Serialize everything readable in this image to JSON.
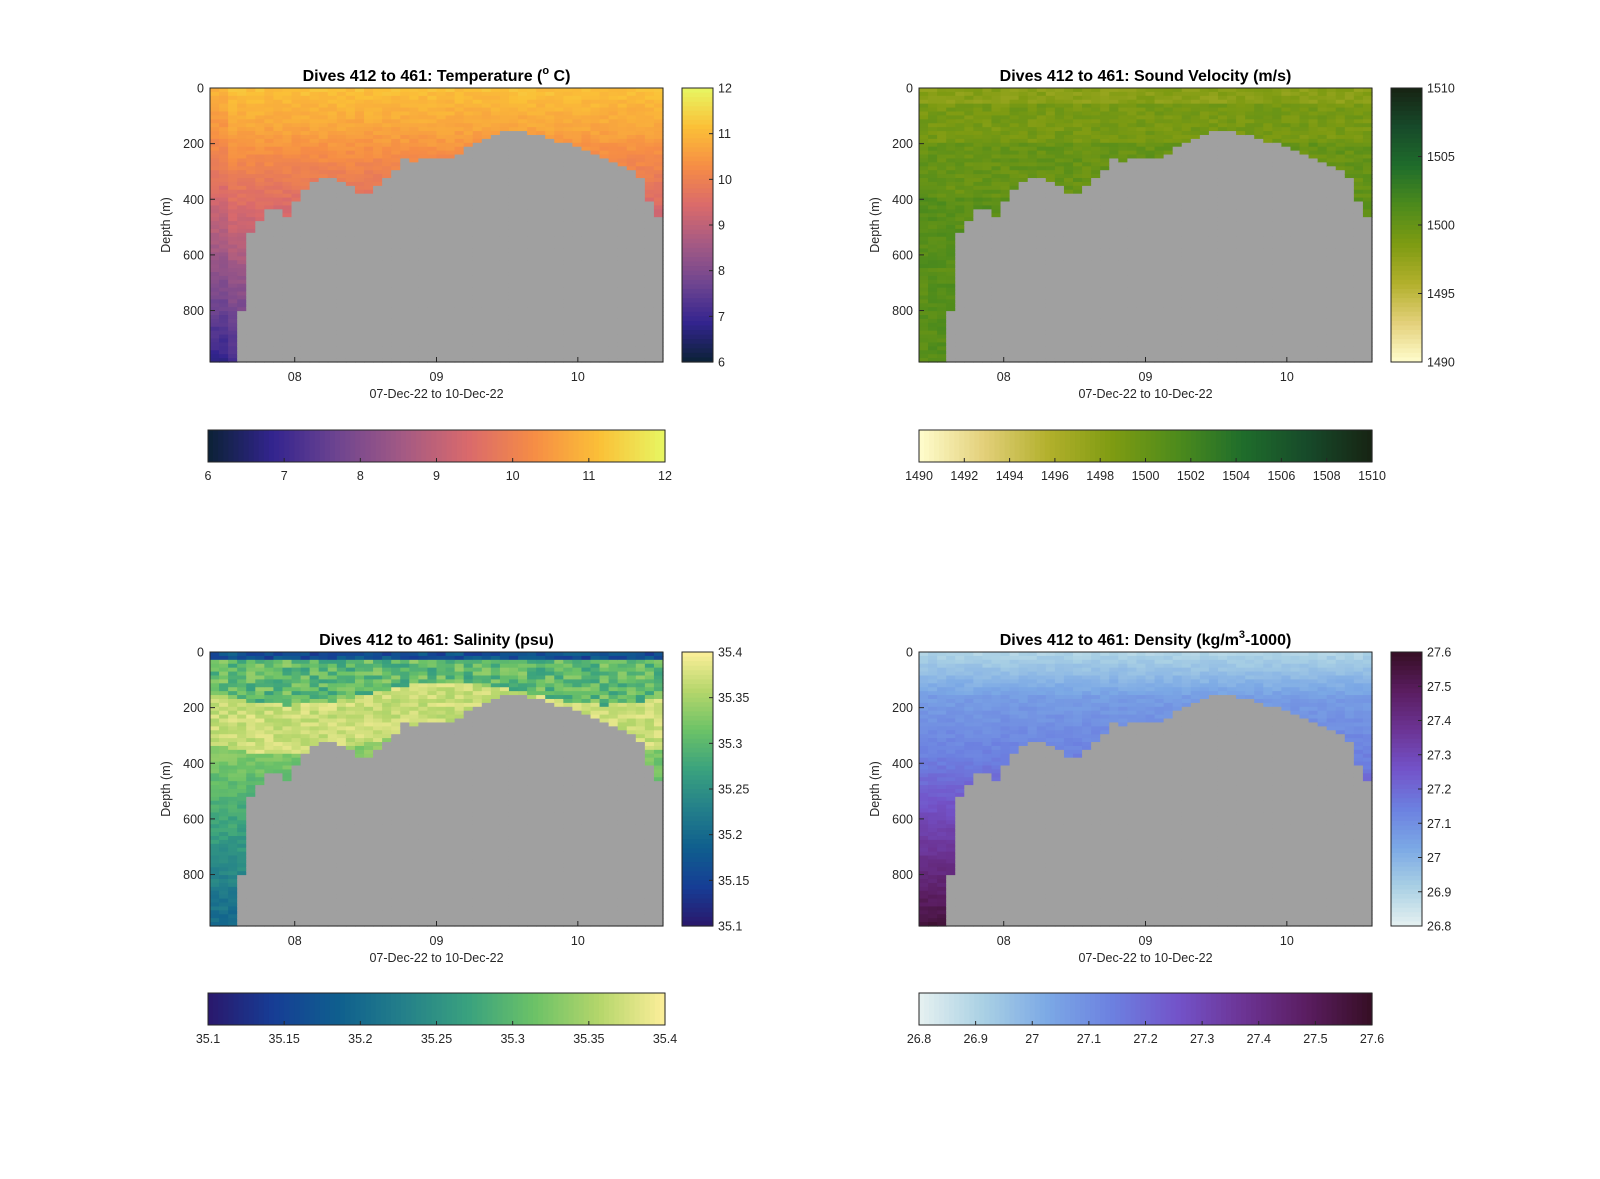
{
  "figure": {
    "background": "#ffffff",
    "seabed_color": "#a0a0a0"
  },
  "chart_data": [
    {
      "id": "temperature",
      "type": "heatmap",
      "title_main": "Dives 412 to 461: Temperature (",
      "title_sup": "o",
      "title_tail": " C)",
      "xlabel": "07-Dec-22 to 10-Dec-22",
      "ylabel": "Depth (m)",
      "xticks": [
        "08",
        "09",
        "10"
      ],
      "yticks": [
        "0",
        "200",
        "400",
        "600",
        "800"
      ],
      "ylim": [
        0,
        985
      ],
      "colormap": "thermal",
      "colors": [
        "#0b2236",
        "#33248f",
        "#6f4590",
        "#a45a84",
        "#da6a6b",
        "#f68d45",
        "#fbc037",
        "#e7f763"
      ],
      "clim": [
        6,
        12
      ],
      "cbar_vertical_ticks": [
        "6",
        "7",
        "8",
        "9",
        "10",
        "11",
        "12"
      ],
      "cbar_horizontal_ticks": [
        "6",
        "7",
        "8",
        "9",
        "10",
        "11",
        "12"
      ]
    },
    {
      "id": "sound_velocity",
      "type": "heatmap",
      "title_main": "Dives 412 to 461: Sound Velocity (m/s)",
      "title_sup": "",
      "title_tail": "",
      "xlabel": "07-Dec-22 to 10-Dec-22",
      "ylabel": "Depth (m)",
      "xticks": [
        "08",
        "09",
        "10"
      ],
      "yticks": [
        "0",
        "200",
        "400",
        "600",
        "800"
      ],
      "ylim": [
        0,
        985
      ],
      "colormap": "speed",
      "colors": [
        "#fffdcd",
        "#e3d07a",
        "#b2b02c",
        "#7e9b12",
        "#4d8b1c",
        "#1f6d2b",
        "#174a2a",
        "#172313"
      ],
      "clim": [
        1490,
        1510
      ],
      "cbar_vertical_ticks": [
        "1490",
        "1495",
        "1500",
        "1505",
        "1510"
      ],
      "cbar_horizontal_ticks": [
        "1490",
        "1492",
        "1494",
        "1496",
        "1498",
        "1500",
        "1502",
        "1504",
        "1506",
        "1508",
        "1510"
      ]
    },
    {
      "id": "salinity",
      "type": "heatmap",
      "title_main": "Dives 412 to 461: Salinity (psu)",
      "title_sup": "",
      "title_tail": "",
      "xlabel": "07-Dec-22 to 10-Dec-22",
      "ylabel": "Depth (m)",
      "xticks": [
        "08",
        "09",
        "10"
      ],
      "yticks": [
        "0",
        "200",
        "400",
        "600",
        "800"
      ],
      "ylim": [
        0,
        985
      ],
      "colormap": "haline",
      "colors": [
        "#2a186c",
        "#163d95",
        "#0f5f8e",
        "#24808a",
        "#3aa27e",
        "#6cc267",
        "#b5d66b",
        "#fdef9a"
      ],
      "clim": [
        35.1,
        35.4
      ],
      "cbar_vertical_ticks": [
        "35.1",
        "35.15",
        "35.2",
        "35.25",
        "35.3",
        "35.35",
        "35.4"
      ],
      "cbar_horizontal_ticks": [
        "35.1",
        "35.15",
        "35.2",
        "35.25",
        "35.3",
        "35.35",
        "35.4"
      ]
    },
    {
      "id": "density",
      "type": "heatmap",
      "title_main": "Dives 412 to 461: Density (kg/m",
      "title_sup": "3",
      "title_tail": "-1000)",
      "xlabel": "07-Dec-22 to 10-Dec-22",
      "ylabel": "Depth (m)",
      "xticks": [
        "08",
        "09",
        "10"
      ],
      "yticks": [
        "0",
        "200",
        "400",
        "600",
        "800"
      ],
      "ylim": [
        0,
        985
      ],
      "colormap": "dense",
      "colors": [
        "#e6f1f1",
        "#a9d0e4",
        "#7ba8e5",
        "#6c80e0",
        "#7353c9",
        "#6c3495",
        "#5a1d60",
        "#360e24"
      ],
      "clim": [
        26.8,
        27.6
      ],
      "cbar_vertical_ticks": [
        "26.8",
        "26.9",
        "27",
        "27.1",
        "27.2",
        "27.3",
        "27.4",
        "27.5",
        "27.6"
      ],
      "cbar_horizontal_ticks": [
        "26.8",
        "26.9",
        "27",
        "27.1",
        "27.2",
        "27.3",
        "27.4",
        "27.5",
        "27.6"
      ]
    }
  ]
}
